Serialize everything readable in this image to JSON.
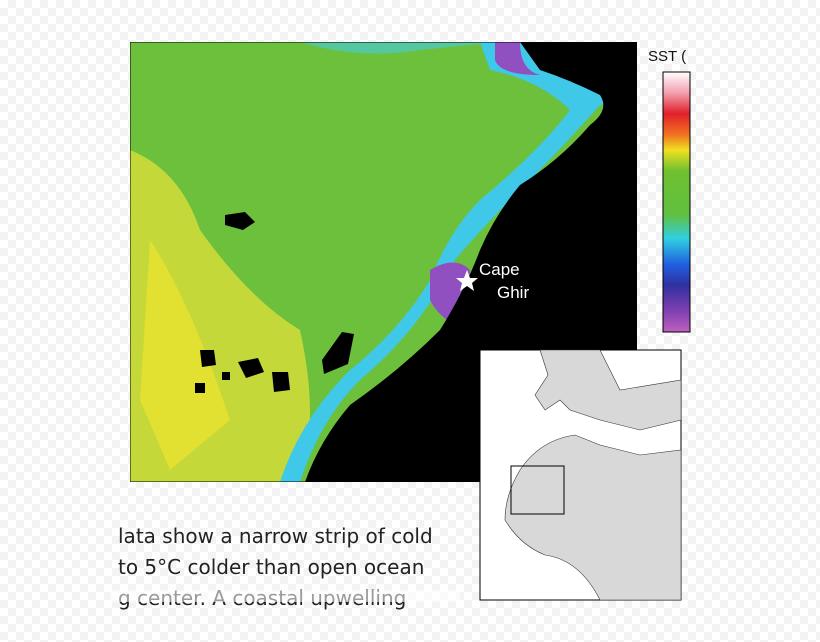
{
  "map": {
    "legend_title": "SST (",
    "labels": [
      "Cape",
      "Ghir"
    ]
  },
  "caption": {
    "lines": [
      "lata show a narrow strip of cold",
      "to 5°C colder than open ocean",
      "g center. A coastal upwelling"
    ]
  }
}
